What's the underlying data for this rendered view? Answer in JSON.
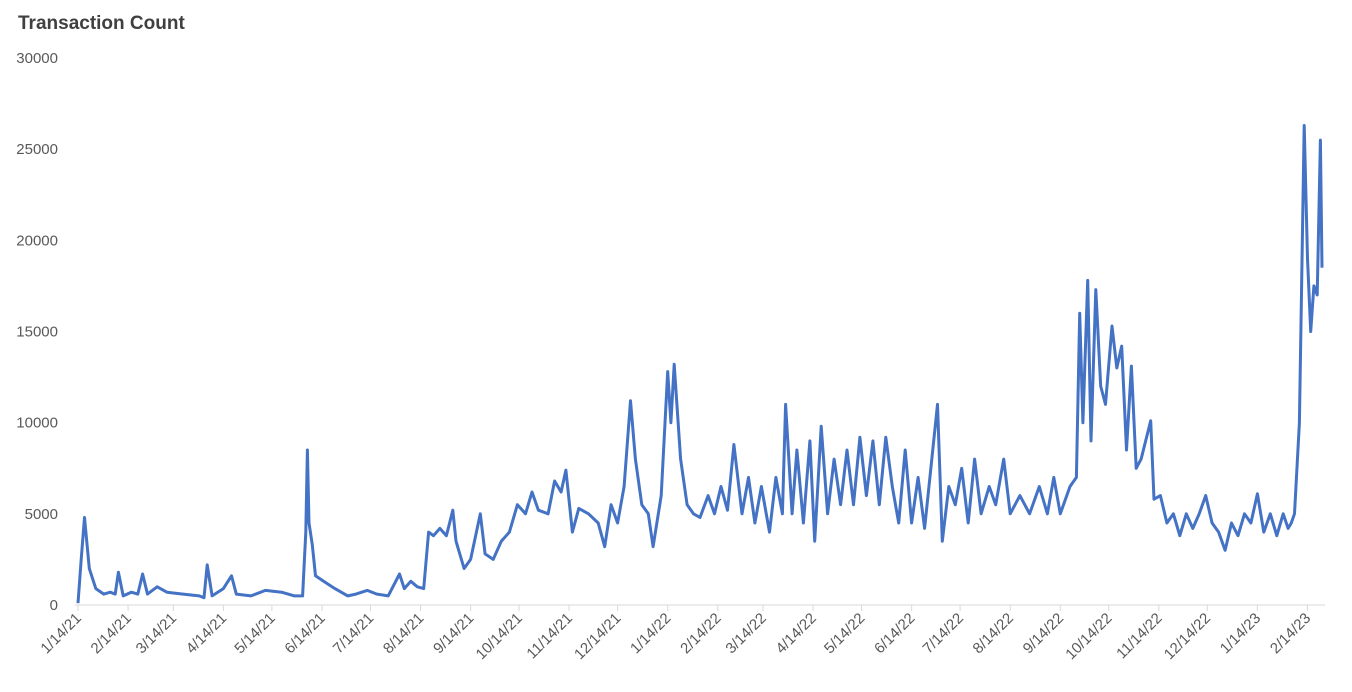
{
  "chart_data": {
    "type": "line",
    "title": "Transaction Count",
    "color": "#4472c4",
    "x": [
      "1/14/21",
      "1/16/21",
      "1/18/21",
      "1/21/21",
      "1/25/21",
      "1/30/21",
      "2/3/21",
      "2/6/21",
      "2/8/21",
      "2/11/21",
      "2/16/21",
      "2/20/21",
      "2/23/21",
      "2/26/21",
      "3/4/21",
      "3/10/21",
      "3/20/21",
      "3/30/21",
      "4/2/21",
      "4/4/21",
      "4/7/21",
      "4/14/21",
      "4/19/21",
      "4/22/21",
      "5/1/21",
      "5/10/21",
      "5/20/21",
      "5/28/21",
      "6/2/21",
      "6/4/21",
      "6/5/21",
      "6/6/21",
      "6/8/21",
      "6/10/21",
      "6/15/21",
      "6/22/21",
      "6/30/21",
      "7/5/21",
      "7/12/21",
      "7/18/21",
      "7/25/21",
      "8/1/21",
      "8/4/21",
      "8/8/21",
      "8/12/21",
      "8/16/21",
      "8/19/21",
      "8/22/21",
      "8/26/21",
      "8/30/21",
      "9/3/21",
      "9/5/21",
      "9/10/21",
      "9/14/21",
      "9/20/21",
      "9/23/21",
      "9/28/21",
      "10/3/21",
      "10/8/21",
      "10/13/21",
      "10/18/21",
      "10/22/21",
      "10/26/21",
      "11/1/21",
      "11/5/21",
      "11/9/21",
      "11/12/21",
      "11/16/21",
      "11/20/21",
      "11/26/21",
      "12/2/21",
      "12/6/21",
      "12/10/21",
      "12/14/21",
      "12/18/21",
      "12/22/21",
      "12/25/21",
      "12/29/21",
      "1/2/22",
      "1/5/22",
      "1/10/22",
      "1/14/22",
      "1/16/22",
      "1/18/22",
      "1/22/22",
      "1/26/22",
      "1/30/22",
      "2/3/22",
      "2/8/22",
      "2/12/22",
      "2/16/22",
      "2/20/22",
      "2/24/22",
      "3/1/22",
      "3/5/22",
      "3/9/22",
      "3/13/22",
      "3/18/22",
      "3/22/22",
      "3/26/22",
      "3/28/22",
      "4/1/22",
      "4/4/22",
      "4/8/22",
      "4/12/22",
      "4/15/22",
      "4/19/22",
      "4/23/22",
      "4/27/22",
      "5/1/22",
      "5/5/22",
      "5/9/22",
      "5/13/22",
      "5/17/22",
      "5/21/22",
      "5/25/22",
      "5/29/22",
      "6/2/22",
      "6/6/22",
      "6/10/22",
      "6/14/22",
      "6/18/22",
      "6/22/22",
      "6/30/22",
      "7/3/22",
      "7/7/22",
      "7/11/22",
      "7/15/22",
      "7/19/22",
      "7/23/22",
      "7/27/22",
      "8/1/22",
      "8/5/22",
      "8/10/22",
      "8/14/22",
      "8/20/22",
      "8/26/22",
      "9/1/22",
      "9/6/22",
      "9/10/22",
      "9/14/22",
      "9/20/22",
      "9/24/22",
      "9/26/22",
      "9/28/22",
      "10/1/22",
      "10/3/22",
      "10/6/22",
      "10/9/22",
      "10/12/22",
      "10/16/22",
      "10/19/22",
      "10/22/22",
      "10/25/22",
      "10/28/22",
      "10/31/22",
      "11/3/22",
      "11/9/22",
      "11/11/22",
      "11/15/22",
      "11/19/22",
      "11/23/22",
      "11/27/22",
      "12/1/22",
      "12/5/22",
      "12/9/22",
      "12/13/22",
      "12/17/22",
      "12/21/22",
      "12/25/22",
      "12/29/22",
      "1/2/23",
      "1/6/23",
      "1/10/23",
      "1/14/23",
      "1/18/23",
      "1/22/23",
      "1/26/23",
      "1/30/23",
      "2/2/23",
      "2/4/23",
      "2/6/23",
      "2/9/23",
      "2/12/23",
      "2/14/23",
      "2/16/23",
      "2/18/23",
      "2/20/23",
      "2/22/23",
      "2/23/23"
    ],
    "values": [
      100,
      2500,
      4800,
      2000,
      900,
      600,
      700,
      600,
      1800,
      500,
      700,
      600,
      1700,
      600,
      1000,
      700,
      600,
      500,
      400,
      2200,
      500,
      900,
      1600,
      600,
      500,
      800,
      700,
      500,
      500,
      4000,
      8500,
      4500,
      3300,
      1600,
      1300,
      900,
      500,
      600,
      800,
      600,
      500,
      1700,
      900,
      1300,
      1000,
      900,
      4000,
      3800,
      4200,
      3800,
      5200,
      3500,
      2000,
      2500,
      5000,
      2800,
      2500,
      3500,
      4000,
      5500,
      5000,
      6200,
      5200,
      5000,
      6800,
      6200,
      7400,
      4000,
      5300,
      5000,
      4500,
      3200,
      5500,
      4500,
      6500,
      11200,
      8000,
      5500,
      5000,
      3200,
      6000,
      12800,
      10000,
      13200,
      8000,
      5500,
      5000,
      4800,
      6000,
      5000,
      6500,
      5200,
      8800,
      5000,
      7000,
      4500,
      6500,
      4000,
      7000,
      5000,
      11000,
      5000,
      8500,
      4500,
      9000,
      3500,
      9800,
      5000,
      8000,
      5500,
      8500,
      5500,
      9200,
      6000,
      9000,
      5500,
      9200,
      6500,
      4500,
      8500,
      4500,
      7000,
      4200,
      11000,
      3500,
      6500,
      5500,
      7500,
      4500,
      8000,
      5000,
      6500,
      5500,
      8000,
      5000,
      6000,
      5000,
      6500,
      5000,
      7000,
      5000,
      6500,
      7000,
      16000,
      10000,
      17800,
      9000,
      17300,
      12000,
      11000,
      15300,
      13000,
      14200,
      8500,
      13100,
      7500,
      8000,
      10100,
      5800,
      6000,
      4500,
      5000,
      3800,
      5000,
      4200,
      5000,
      6000,
      4500,
      4000,
      3000,
      4500,
      3800,
      5000,
      4500,
      6100,
      4000,
      5000,
      3800,
      5000,
      4200,
      4500,
      5000,
      10000,
      26300,
      19000,
      15000,
      17500,
      17000,
      25500,
      18500
    ],
    "xlim": [
      "1/14/21",
      "2/23/23"
    ],
    "xticks": [
      "1/14/21",
      "2/14/21",
      "3/14/21",
      "4/14/21",
      "5/14/21",
      "6/14/21",
      "7/14/21",
      "8/14/21",
      "9/14/21",
      "10/14/21",
      "11/14/21",
      "12/14/21",
      "1/14/22",
      "2/14/22",
      "3/14/22",
      "4/14/22",
      "5/14/22",
      "6/14/22",
      "7/14/22",
      "8/14/22",
      "9/14/22",
      "10/14/22",
      "11/14/22",
      "12/14/22",
      "1/14/23",
      "2/14/23"
    ],
    "ylim": [
      0,
      30000
    ],
    "yticks": [
      0,
      5000,
      10000,
      15000,
      20000,
      25000,
      30000
    ],
    "grid": false
  }
}
